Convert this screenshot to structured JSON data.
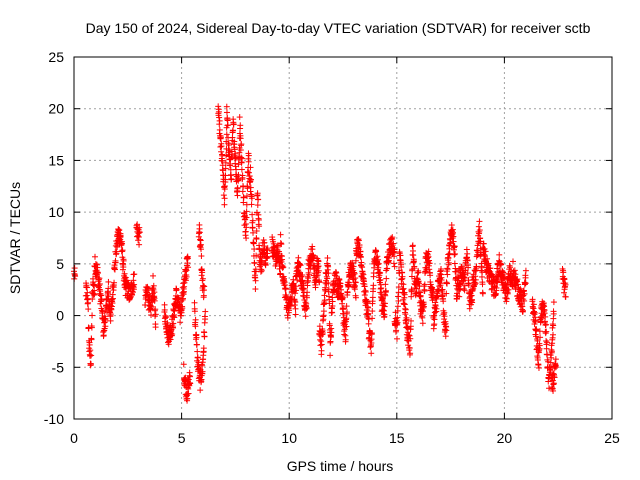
{
  "chart_data": {
    "type": "scatter",
    "title": "Day 150 of 2024, Sidereal Day-to-day VTEC variation (SDTVAR) for receiver sctb",
    "xlabel": "GPS time / hours",
    "ylabel": "SDTVAR / TECUs",
    "xlim": [
      0,
      25
    ],
    "ylim": [
      -10,
      25
    ],
    "x_ticks": [
      0,
      5,
      10,
      15,
      20,
      25
    ],
    "y_ticks": [
      -10,
      -5,
      0,
      5,
      10,
      15,
      20,
      25
    ],
    "x_tick_labels": [
      "0",
      "5",
      "10",
      "15",
      "20",
      "25"
    ],
    "y_tick_labels": [
      "-10",
      "-5",
      "0",
      "5",
      "10",
      "15",
      "20",
      "25"
    ],
    "grid": true,
    "marker": "+",
    "color": "#ff0000",
    "segments": [
      {
        "start": 0.0,
        "end": 0.05,
        "values": [
          4.0,
          3.5
        ]
      },
      {
        "start": 0.55,
        "end": 0.95,
        "values": [
          2.5,
          2.0,
          -3.2,
          -4.5,
          3.0,
          2.5
        ]
      },
      {
        "start": 0.95,
        "end": 1.6,
        "values": [
          5.0,
          4.5,
          3.0,
          1.0,
          -1.5,
          0.5,
          2.5
        ]
      },
      {
        "start": 1.6,
        "end": 2.4,
        "values": [
          1.5,
          0.0,
          3.0,
          6.0,
          8.0,
          7.5,
          5.0,
          2.0
        ]
      },
      {
        "start": 2.4,
        "end": 2.8,
        "values": [
          3.0,
          2.0,
          3.5
        ]
      },
      {
        "start": 2.9,
        "end": 3.05,
        "values": [
          8.5,
          7.5
        ]
      },
      {
        "start": 3.3,
        "end": 3.8,
        "values": [
          1.5,
          2.5,
          0.0,
          3.0,
          -0.5
        ]
      },
      {
        "start": 4.2,
        "end": 5.3,
        "values": [
          0.5,
          -2.0,
          -1.0,
          2.0,
          0.0,
          3.0,
          5.5
        ]
      },
      {
        "start": 5.1,
        "end": 5.4,
        "values": [
          -5.5,
          -7.5,
          -6.0
        ]
      },
      {
        "start": 5.6,
        "end": 6.1,
        "values": [
          1.0,
          -4.0,
          -6.5,
          -5.0,
          0.0
        ]
      },
      {
        "start": 5.8,
        "end": 6.05,
        "values": [
          8.5,
          6.5,
          3.0,
          2.0
        ]
      },
      {
        "start": 6.7,
        "end": 7.1,
        "values": [
          20.0,
          17.0,
          15.0,
          11.0,
          18.0
        ]
      },
      {
        "start": 7.1,
        "end": 7.7,
        "values": [
          19.5,
          16.0,
          13.5,
          18.5,
          15.0,
          12.0,
          17.0
        ]
      },
      {
        "start": 7.7,
        "end": 8.2,
        "values": [
          18.5,
          15.0,
          10.0,
          8.0,
          16.0,
          12.0
        ]
      },
      {
        "start": 8.2,
        "end": 8.6,
        "values": [
          14.0,
          10.0,
          6.0,
          3.0,
          12.0,
          9.0
        ]
      },
      {
        "start": 8.6,
        "end": 9.0,
        "values": [
          6.0,
          4.5,
          7.0,
          5.5,
          6.5
        ]
      },
      {
        "start": 9.2,
        "end": 9.6,
        "values": [
          7.0,
          5.5,
          6.0,
          4.5
        ]
      },
      {
        "start": 9.6,
        "end": 10.3,
        "values": [
          7.0,
          4.0,
          2.0,
          0.5,
          1.5,
          3.0,
          1.0
        ]
      },
      {
        "start": 10.3,
        "end": 10.9,
        "values": [
          3.0,
          5.0,
          4.0,
          2.5,
          0.0,
          5.0
        ]
      },
      {
        "start": 10.9,
        "end": 11.4,
        "values": [
          4.5,
          5.5,
          6.0,
          3.0,
          5.0,
          4.0
        ]
      },
      {
        "start": 11.4,
        "end": 11.9,
        "values": [
          -1.0,
          -3.0,
          0.5,
          3.5,
          5.0,
          -2.0
        ]
      },
      {
        "start": 11.9,
        "end": 12.5,
        "values": [
          -3.5,
          2.0,
          4.0,
          2.5,
          3.0,
          1.0
        ]
      },
      {
        "start": 12.5,
        "end": 13.1,
        "values": [
          0.0,
          -2.0,
          3.0,
          5.0,
          4.0,
          2.5
        ]
      },
      {
        "start": 13.1,
        "end": 13.7,
        "values": [
          6.0,
          7.0,
          5.0,
          3.0,
          1.0,
          0.0
        ]
      },
      {
        "start": 13.7,
        "end": 14.3,
        "values": [
          -1.5,
          -3.0,
          5.0,
          6.0,
          4.0,
          2.0
        ]
      },
      {
        "start": 14.3,
        "end": 14.9,
        "values": [
          1.0,
          0.5,
          5.0,
          6.5,
          7.0,
          5.5
        ]
      },
      {
        "start": 14.9,
        "end": 15.5,
        "values": [
          0.0,
          -1.5,
          6.0,
          3.0,
          1.0,
          -2.0
        ]
      },
      {
        "start": 15.5,
        "end": 16.1,
        "values": [
          -2.0,
          -3.0,
          7.0,
          2.0,
          4.0,
          1.0
        ]
      },
      {
        "start": 16.1,
        "end": 16.7,
        "values": [
          1.5,
          0.0,
          5.0,
          6.0,
          3.0,
          2.0
        ]
      },
      {
        "start": 16.7,
        "end": 17.3,
        "values": [
          -1.0,
          1.0,
          3.0,
          4.0,
          0.0,
          -2.0
        ]
      },
      {
        "start": 17.3,
        "end": 17.9,
        "values": [
          3.0,
          6.0,
          8.5,
          7.0,
          2.0,
          4.0
        ]
      },
      {
        "start": 17.9,
        "end": 18.5,
        "values": [
          2.5,
          4.5,
          3.0,
          6.0,
          1.5,
          2.0
        ]
      },
      {
        "start": 18.5,
        "end": 19.0,
        "values": [
          3.0,
          4.0,
          8.5,
          2.0
        ]
      },
      {
        "start": 19.0,
        "end": 19.6,
        "values": [
          7.0,
          5.0,
          4.0,
          3.0,
          2.5
        ]
      },
      {
        "start": 19.6,
        "end": 20.4,
        "values": [
          3.0,
          5.0,
          3.5,
          2.0,
          4.0,
          3.0
        ]
      },
      {
        "start": 20.4,
        "end": 21.0,
        "values": [
          4.5,
          3.0,
          2.0,
          1.0,
          3.5
        ]
      },
      {
        "start": 21.3,
        "end": 21.7,
        "values": [
          1.0,
          0.0,
          -2.5,
          -4.5,
          0.5
        ]
      },
      {
        "start": 21.7,
        "end": 22.3,
        "values": [
          0.0,
          1.0,
          -2.0,
          -6.5,
          -4.0,
          0.5
        ]
      },
      {
        "start": 22.2,
        "end": 22.4,
        "values": [
          -7.0,
          -5.0
        ]
      },
      {
        "start": 22.7,
        "end": 22.85,
        "values": [
          4.0,
          3.0,
          2.0
        ]
      }
    ]
  }
}
